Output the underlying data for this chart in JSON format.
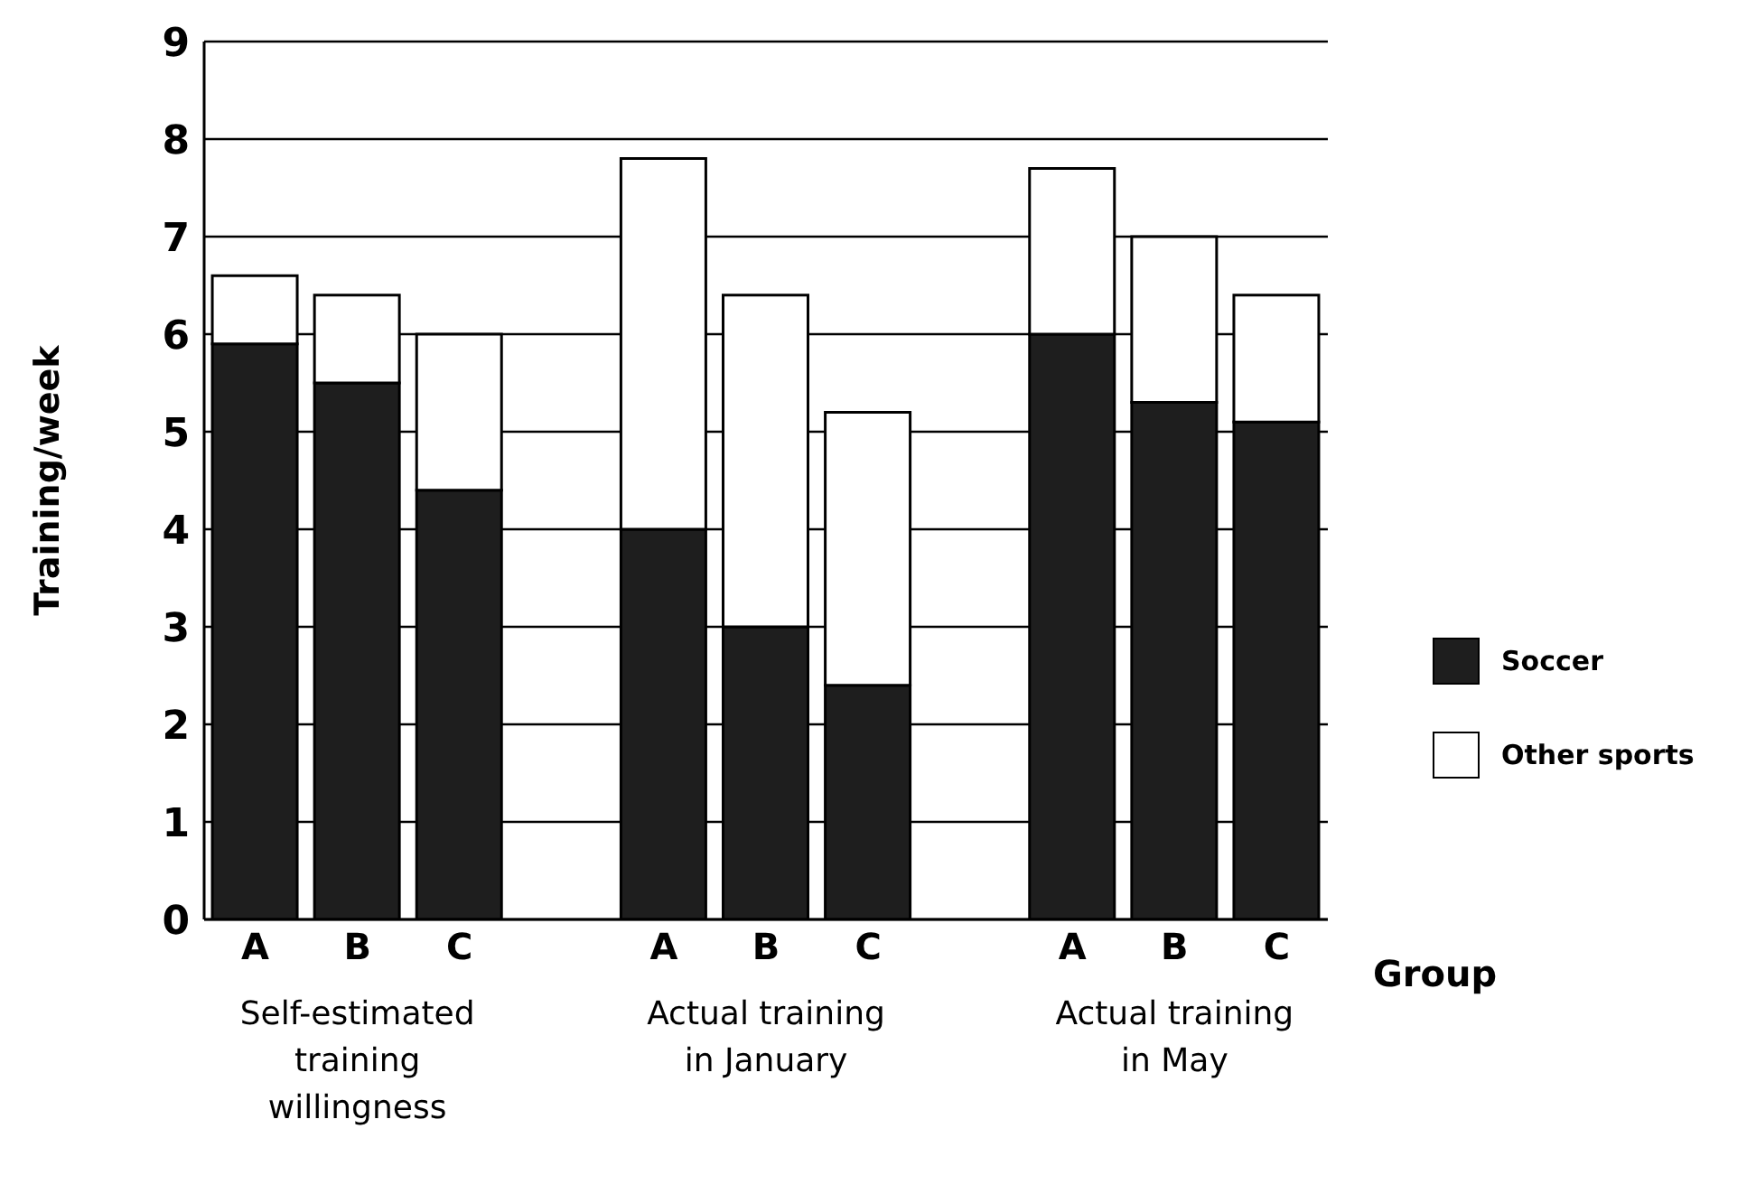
{
  "chart_data": {
    "type": "bar",
    "stacked": true,
    "ylabel": "Training/week",
    "xlabel": "Group",
    "categories": [
      "A",
      "B",
      "C",
      null,
      "A",
      "B",
      "C",
      null,
      "A",
      "B",
      "C"
    ],
    "series": [
      {
        "name": "Soccer",
        "color": "#1e1e1e",
        "values": [
          5.9,
          5.5,
          4.4,
          null,
          4.0,
          3.0,
          2.4,
          null,
          6.0,
          5.3,
          5.1
        ]
      },
      {
        "name": "Other sports",
        "color": "#ffffff",
        "values": [
          0.7,
          0.9,
          1.6,
          null,
          3.8,
          3.4,
          2.8,
          null,
          1.7,
          1.7,
          1.3
        ]
      }
    ],
    "ylim": [
      0,
      9
    ],
    "yticks": [
      0,
      1,
      2,
      3,
      4,
      5,
      6,
      7,
      8,
      9
    ],
    "grid": "y",
    "legend": "right",
    "annotations": [
      "Self-estimated training willingness",
      "Actual training in January",
      "Actual training in May"
    ]
  }
}
